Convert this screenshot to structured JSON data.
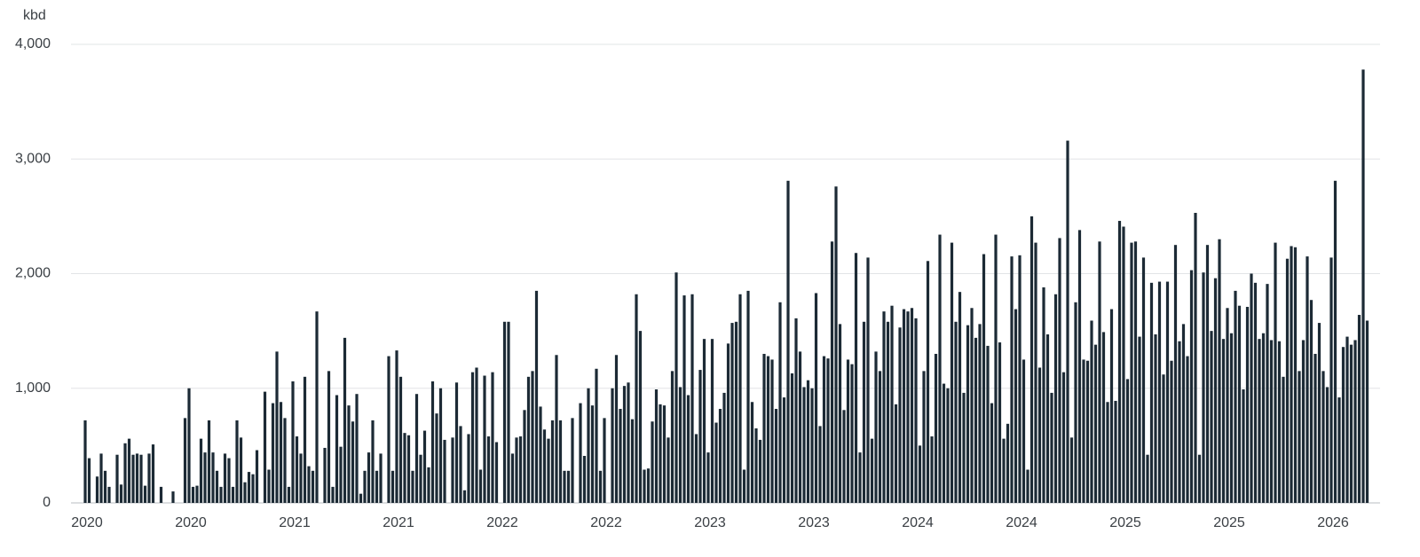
{
  "chart_data": {
    "type": "bar",
    "y_label": "kbd",
    "color": "#1c2a35",
    "grid": true,
    "ylim": [
      0,
      4000
    ],
    "yticks": [
      0,
      {
        "value": 1000,
        "label": "1,000"
      },
      {
        "value": 2000,
        "label": "2,000"
      },
      {
        "value": 3000,
        "label": "3,000"
      },
      {
        "value": 4000,
        "label": "4,000"
      }
    ],
    "categories": [
      "2020",
      null,
      null,
      null,
      null,
      null,
      null,
      null,
      null,
      null,
      null,
      null,
      null,
      null,
      null,
      null,
      null,
      null,
      null,
      null,
      null,
      null,
      null,
      null,
      null,
      null,
      "2020",
      null,
      null,
      null,
      null,
      null,
      null,
      null,
      null,
      null,
      null,
      null,
      null,
      null,
      null,
      null,
      null,
      null,
      null,
      null,
      null,
      null,
      null,
      null,
      null,
      null,
      "2021",
      null,
      null,
      null,
      null,
      null,
      null,
      null,
      null,
      null,
      null,
      null,
      null,
      null,
      null,
      null,
      null,
      null,
      null,
      null,
      null,
      null,
      null,
      null,
      null,
      null,
      "2021",
      null,
      null,
      null,
      null,
      null,
      null,
      null,
      null,
      null,
      null,
      null,
      null,
      null,
      null,
      null,
      null,
      null,
      null,
      null,
      null,
      null,
      null,
      null,
      null,
      null,
      "2022",
      null,
      null,
      null,
      null,
      null,
      null,
      null,
      null,
      null,
      null,
      null,
      null,
      null,
      null,
      null,
      null,
      null,
      null,
      null,
      null,
      null,
      null,
      null,
      null,
      null,
      "2022",
      null,
      null,
      null,
      null,
      null,
      null,
      null,
      null,
      null,
      null,
      null,
      null,
      null,
      null,
      null,
      null,
      null,
      null,
      null,
      null,
      null,
      null,
      null,
      null,
      null,
      "2023",
      null,
      null,
      null,
      null,
      null,
      null,
      null,
      null,
      null,
      null,
      null,
      null,
      null,
      null,
      null,
      null,
      null,
      null,
      null,
      null,
      null,
      null,
      null,
      null,
      null,
      "2023",
      null,
      null,
      null,
      null,
      null,
      null,
      null,
      null,
      null,
      null,
      null,
      null,
      null,
      null,
      null,
      null,
      null,
      null,
      null,
      null,
      null,
      null,
      null,
      null,
      null,
      "2024",
      null,
      null,
      null,
      null,
      null,
      null,
      null,
      null,
      null,
      null,
      null,
      null,
      null,
      null,
      null,
      null,
      null,
      null,
      null,
      null,
      null,
      null,
      null,
      null,
      null,
      "2024",
      null,
      null,
      null,
      null,
      null,
      null,
      null,
      null,
      null,
      null,
      null,
      null,
      null,
      null,
      null,
      null,
      null,
      null,
      null,
      null,
      null,
      null,
      null,
      null,
      null,
      "2025",
      null,
      null,
      null,
      null,
      null,
      null,
      null,
      null,
      null,
      null,
      null,
      null,
      null,
      null,
      null,
      null,
      null,
      null,
      null,
      null,
      null,
      null,
      null,
      null,
      null,
      "2025",
      null,
      null,
      null,
      null,
      null,
      null,
      null,
      null,
      null,
      null,
      null,
      null,
      null,
      null,
      null,
      null,
      null,
      null,
      null,
      null,
      null,
      null,
      null,
      null,
      null,
      "2026",
      null,
      null,
      null,
      null,
      null,
      null,
      null,
      null,
      null
    ],
    "values": [
      720,
      390,
      null,
      230,
      430,
      280,
      140,
      null,
      420,
      160,
      520,
      560,
      420,
      430,
      420,
      150,
      430,
      510,
      null,
      140,
      null,
      null,
      100,
      null,
      null,
      740,
      1000,
      140,
      150,
      560,
      440,
      720,
      440,
      280,
      140,
      430,
      390,
      140,
      720,
      570,
      180,
      270,
      250,
      460,
      null,
      970,
      290,
      870,
      1320,
      880,
      740,
      140,
      1060,
      580,
      430,
      1100,
      320,
      280,
      1670,
      null,
      480,
      1150,
      140,
      940,
      490,
      1440,
      850,
      710,
      950,
      80,
      280,
      440,
      720,
      280,
      430,
      null,
      1280,
      280,
      1330,
      1100,
      610,
      590,
      280,
      950,
      420,
      630,
      310,
      1060,
      780,
      1000,
      550,
      null,
      570,
      1050,
      670,
      110,
      600,
      1140,
      1180,
      290,
      1110,
      580,
      1140,
      530,
      null,
      1580,
      1580,
      430,
      570,
      580,
      810,
      1100,
      1150,
      1850,
      840,
      640,
      560,
      720,
      1290,
      720,
      280,
      280,
      740,
      null,
      870,
      410,
      1000,
      850,
      1170,
      280,
      740,
      null,
      1000,
      1290,
      820,
      1020,
      1050,
      730,
      1820,
      1500,
      290,
      300,
      710,
      990,
      860,
      850,
      570,
      1150,
      2010,
      1010,
      1810,
      940,
      1820,
      600,
      1160,
      1430,
      440,
      1430,
      700,
      820,
      960,
      1390,
      1570,
      1580,
      1820,
      290,
      1850,
      880,
      650,
      550,
      1300,
      1280,
      1250,
      820,
      1750,
      920,
      2810,
      1130,
      1610,
      1320,
      1010,
      1070,
      1000,
      1830,
      670,
      1280,
      1260,
      2280,
      2760,
      1560,
      810,
      1250,
      1210,
      2180,
      440,
      1580,
      2140,
      560,
      1320,
      1150,
      1670,
      1580,
      1720,
      860,
      1530,
      1690,
      1670,
      1700,
      1610,
      500,
      1150,
      2110,
      580,
      1300,
      2340,
      1040,
      1000,
      2270,
      1580,
      1840,
      960,
      1550,
      1700,
      1440,
      1560,
      2170,
      1370,
      870,
      2340,
      1400,
      560,
      690,
      2150,
      1690,
      2160,
      1250,
      290,
      2500,
      2270,
      1180,
      1880,
      1470,
      960,
      1820,
      2310,
      1140,
      3160,
      570,
      1750,
      2380,
      1250,
      1240,
      1590,
      1380,
      2280,
      1490,
      880,
      1690,
      890,
      2460,
      2410,
      1080,
      2270,
      2280,
      1450,
      2140,
      420,
      1920,
      1470,
      1930,
      1120,
      1930,
      1240,
      2250,
      1410,
      1560,
      1280,
      2030,
      2530,
      420,
      2010,
      2250,
      1500,
      1960,
      2300,
      1430,
      1700,
      1480,
      1850,
      1720,
      990,
      1710,
      2000,
      1920,
      1430,
      1480,
      1910,
      1420,
      2270,
      1410,
      1100,
      2130,
      2240,
      2230,
      1150,
      1420,
      2150,
      1770,
      1300,
      1570,
      1150,
      1010,
      2140,
      2810,
      920,
      1360,
      1450,
      1380,
      1420,
      1640,
      3780,
      1590
    ]
  }
}
